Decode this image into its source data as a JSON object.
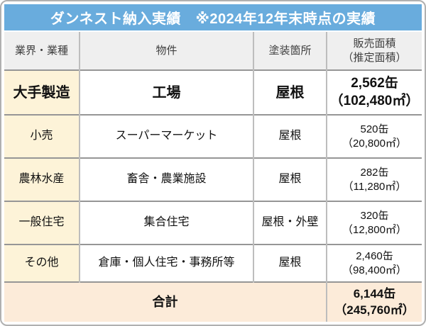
{
  "title": "ダンネスト納入実績　※2024年12年末時点の実績",
  "colors": {
    "title_bg": "#69acdd",
    "title_text": "#ffffff",
    "header_bg": "#efefef",
    "industry_col_bg": "#fdf3d8",
    "total_row_bg": "#fcebd9",
    "row_border": "#969696",
    "col_border": "#bdbdbd",
    "outer_border": "#b0b0b0"
  },
  "table": {
    "headers": {
      "industry": "業界・業種",
      "property": "物件",
      "paint_area": "塗装箇所",
      "sales_area_line1": "販売面積",
      "sales_area_line2": "（推定面積）"
    },
    "rows": [
      {
        "industry": "大手製造",
        "property": "工場",
        "paint_area": "屋根",
        "cans": "2,562缶",
        "sqm": "（102,480㎡）"
      },
      {
        "industry": "小売",
        "property": "スーパーマーケット",
        "paint_area": "屋根",
        "cans": "520缶",
        "sqm": "（20,800㎡）"
      },
      {
        "industry": "農林水産",
        "property": "畜舎・農業施設",
        "paint_area": "屋根",
        "cans": "282缶",
        "sqm": "（11,280㎡）"
      },
      {
        "industry": "一般住宅",
        "property": "集合住宅",
        "paint_area": "屋根・外壁",
        "cans": "320缶",
        "sqm": "（12,800㎡）"
      },
      {
        "industry": "その他",
        "property": "倉庫・個人住宅・事務所等",
        "paint_area": "屋根",
        "cans": "2,460缶",
        "sqm": "（98,400㎡）"
      }
    ],
    "total": {
      "label": "合計",
      "cans": "6,144缶",
      "sqm": "（245,760㎡）"
    }
  }
}
